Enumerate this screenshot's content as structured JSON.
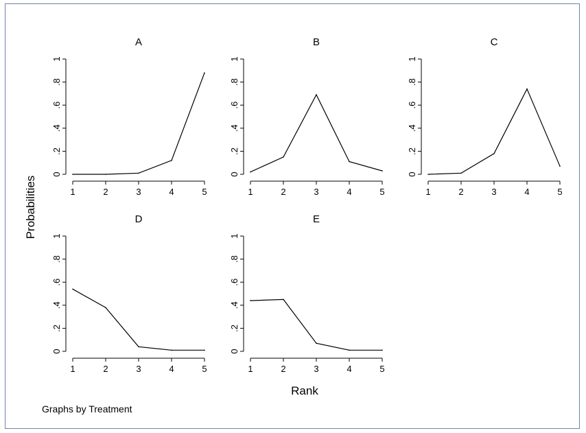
{
  "chart_data": {
    "type": "line",
    "ylabel": "Probabilities",
    "xlabel": "Rank",
    "note": "Graphs by Treatment",
    "xlim": [
      1,
      5
    ],
    "ylim": [
      0,
      1
    ],
    "x_ticks": [
      "1",
      "2",
      "3",
      "4",
      "5"
    ],
    "y_ticks": [
      "0",
      ".2",
      ".4",
      ".6",
      ".8",
      "1"
    ],
    "line_color": "#000000",
    "panels": [
      {
        "title": "A",
        "x": [
          1,
          2,
          3,
          4,
          5
        ],
        "y": [
          0.0,
          0.0,
          0.01,
          0.12,
          0.88
        ]
      },
      {
        "title": "B",
        "x": [
          1,
          2,
          3,
          4,
          5
        ],
        "y": [
          0.02,
          0.15,
          0.69,
          0.11,
          0.03
        ]
      },
      {
        "title": "C",
        "x": [
          1,
          2,
          3,
          4,
          5
        ],
        "y": [
          0.0,
          0.01,
          0.18,
          0.74,
          0.07
        ]
      },
      {
        "title": "D",
        "x": [
          1,
          2,
          3,
          4,
          5
        ],
        "y": [
          0.54,
          0.38,
          0.04,
          0.01,
          0.01
        ]
      },
      {
        "title": "E",
        "x": [
          1,
          2,
          3,
          4,
          5
        ],
        "y": [
          0.44,
          0.45,
          0.07,
          0.01,
          0.01
        ]
      }
    ]
  }
}
